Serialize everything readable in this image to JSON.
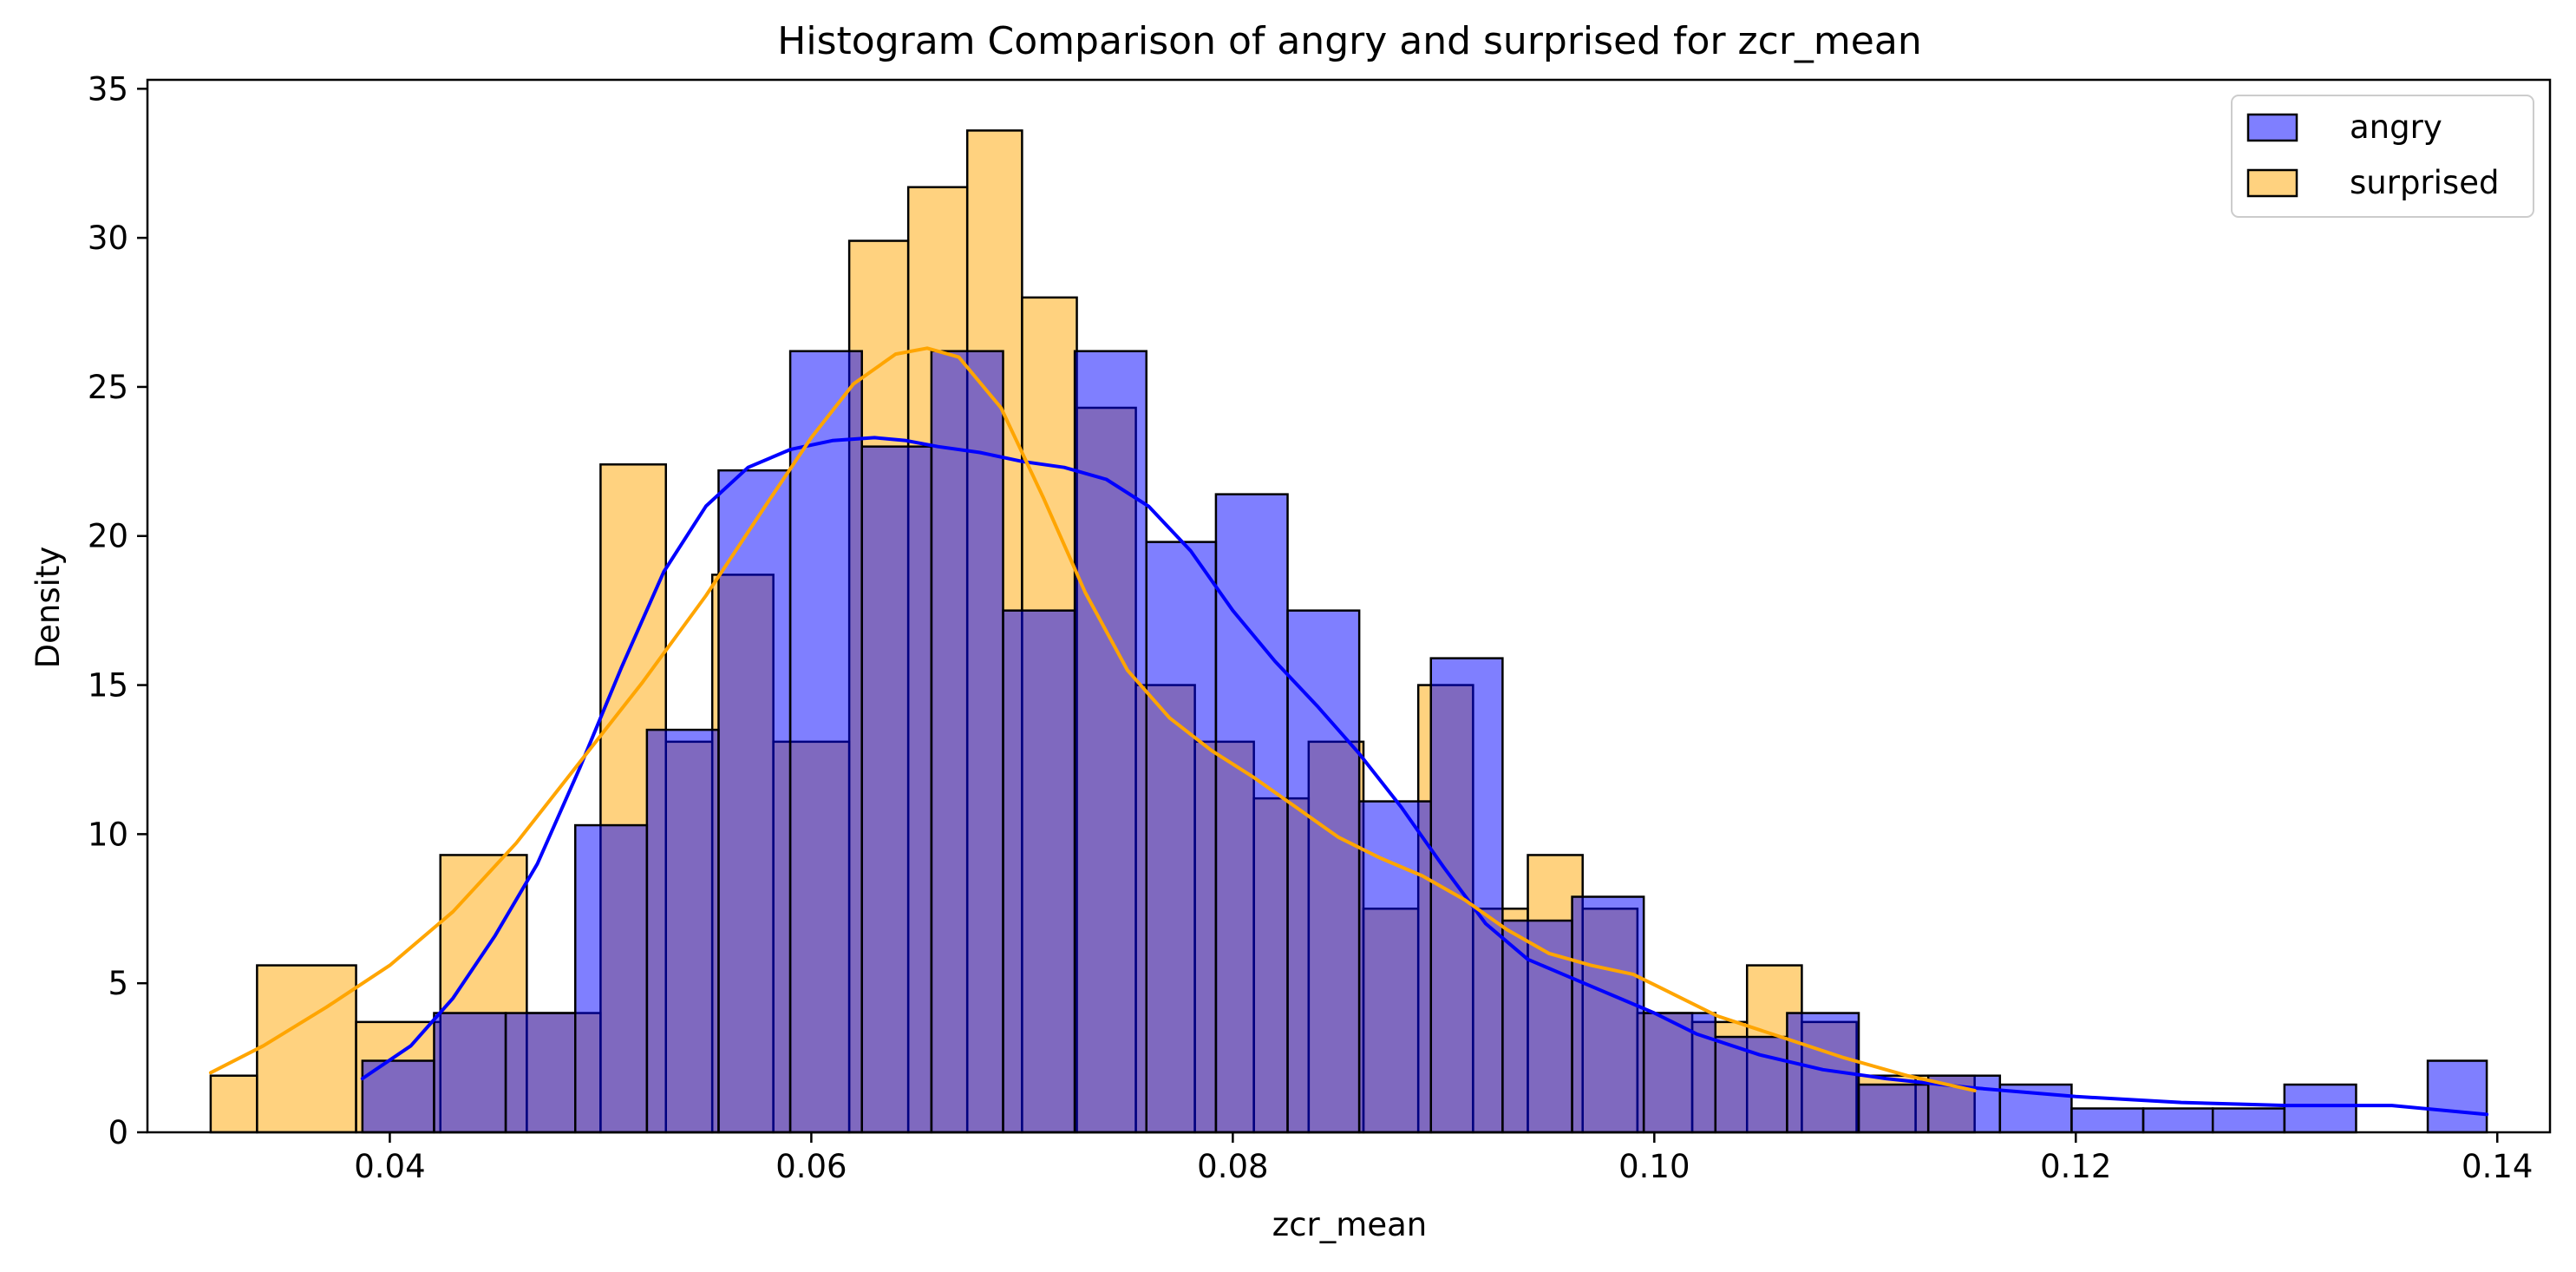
{
  "chart_data": {
    "type": "histogram",
    "title": "Histogram Comparison of angry and surprised for zcr_mean",
    "xlabel": "zcr_mean",
    "ylabel": "Density",
    "xlim": [
      0.0285,
      0.1425
    ],
    "ylim": [
      0,
      35.3
    ],
    "xticks": [
      0.04,
      0.06,
      0.08,
      0.1,
      0.12,
      0.14
    ],
    "xtick_labels": [
      "0.04",
      "0.06",
      "0.08",
      "0.10",
      "0.12",
      "0.14"
    ],
    "yticks": [
      0,
      5,
      10,
      15,
      20,
      25,
      30,
      35
    ],
    "ytick_labels": [
      "0",
      "5",
      "10",
      "15",
      "20",
      "25",
      "30",
      "35"
    ],
    "legend_position": "top-right",
    "grid": false,
    "series": [
      {
        "name": "angry",
        "color": "#0000ff",
        "fill_opacity": 0.5,
        "bins": [
          {
            "x0": 0.0387,
            "x1": 0.0421,
            "value": 2.4
          },
          {
            "x0": 0.0421,
            "x1": 0.0455,
            "value": 4.0
          },
          {
            "x0": 0.0455,
            "x1": 0.0488,
            "value": 4.0
          },
          {
            "x0": 0.0488,
            "x1": 0.0522,
            "value": 10.3
          },
          {
            "x0": 0.0522,
            "x1": 0.0556,
            "value": 13.5
          },
          {
            "x0": 0.0556,
            "x1": 0.059,
            "value": 22.2
          },
          {
            "x0": 0.059,
            "x1": 0.0624,
            "value": 26.2
          },
          {
            "x0": 0.0624,
            "x1": 0.0657,
            "value": 23.0
          },
          {
            "x0": 0.0657,
            "x1": 0.0691,
            "value": 26.2
          },
          {
            "x0": 0.0691,
            "x1": 0.0725,
            "value": 17.5
          },
          {
            "x0": 0.0725,
            "x1": 0.0759,
            "value": 26.2
          },
          {
            "x0": 0.0759,
            "x1": 0.0792,
            "value": 19.8
          },
          {
            "x0": 0.0792,
            "x1": 0.0826,
            "value": 21.4
          },
          {
            "x0": 0.0826,
            "x1": 0.086,
            "value": 17.5
          },
          {
            "x0": 0.086,
            "x1": 0.0894,
            "value": 11.1
          },
          {
            "x0": 0.0894,
            "x1": 0.0928,
            "value": 15.9
          },
          {
            "x0": 0.0928,
            "x1": 0.0961,
            "value": 7.1
          },
          {
            "x0": 0.0961,
            "x1": 0.0995,
            "value": 7.9
          },
          {
            "x0": 0.0995,
            "x1": 0.1029,
            "value": 4.0
          },
          {
            "x0": 0.1029,
            "x1": 0.1063,
            "value": 3.2
          },
          {
            "x0": 0.1063,
            "x1": 0.1097,
            "value": 4.0
          },
          {
            "x0": 0.1097,
            "x1": 0.113,
            "value": 1.6
          },
          {
            "x0": 0.113,
            "x1": 0.1164,
            "value": 1.9
          },
          {
            "x0": 0.1164,
            "x1": 0.1198,
            "value": 1.6
          },
          {
            "x0": 0.1198,
            "x1": 0.1232,
            "value": 0.8
          },
          {
            "x0": 0.1232,
            "x1": 0.1265,
            "value": 0.8
          },
          {
            "x0": 0.1265,
            "x1": 0.1299,
            "value": 0.8
          },
          {
            "x0": 0.1299,
            "x1": 0.1333,
            "value": 1.6
          },
          {
            "x0": 0.1333,
            "x1": 0.1367,
            "value": 0
          },
          {
            "x0": 0.1367,
            "x1": 0.1395,
            "value": 2.4
          }
        ],
        "kde": {
          "x": [
            0.0387,
            0.041,
            0.043,
            0.045,
            0.047,
            0.049,
            0.051,
            0.053,
            0.055,
            0.057,
            0.059,
            0.061,
            0.063,
            0.0645,
            0.066,
            0.068,
            0.07,
            0.072,
            0.074,
            0.076,
            0.078,
            0.08,
            0.082,
            0.084,
            0.086,
            0.088,
            0.09,
            0.092,
            0.094,
            0.096,
            0.098,
            0.1,
            0.102,
            0.105,
            0.108,
            0.111,
            0.115,
            0.12,
            0.125,
            0.13,
            0.135,
            0.1395
          ],
          "y": [
            1.8,
            2.9,
            4.5,
            6.6,
            9.0,
            12.2,
            15.6,
            18.8,
            21.0,
            22.3,
            22.9,
            23.2,
            23.3,
            23.2,
            23.0,
            22.8,
            22.5,
            22.3,
            21.9,
            21.0,
            19.5,
            17.5,
            15.8,
            14.3,
            12.7,
            10.9,
            8.9,
            7.0,
            5.8,
            5.2,
            4.6,
            4.0,
            3.3,
            2.6,
            2.1,
            1.8,
            1.5,
            1.2,
            1.0,
            0.9,
            0.9,
            0.6
          ]
        }
      },
      {
        "name": "surprised",
        "color": "#ffa500",
        "fill_opacity": 0.5,
        "bins": [
          {
            "x0": 0.0315,
            "x1": 0.0337,
            "value": 1.9
          },
          {
            "x0": 0.0337,
            "x1": 0.0384,
            "value": 5.6
          },
          {
            "x0": 0.0384,
            "x1": 0.0424,
            "value": 3.7
          },
          {
            "x0": 0.0424,
            "x1": 0.0465,
            "value": 9.3
          },
          {
            "x0": 0.0465,
            "x1": 0.05,
            "value": 4.0
          },
          {
            "x0": 0.05,
            "x1": 0.0531,
            "value": 22.4
          },
          {
            "x0": 0.0531,
            "x1": 0.0553,
            "value": 13.1
          },
          {
            "x0": 0.0553,
            "x1": 0.0582,
            "value": 18.7
          },
          {
            "x0": 0.0582,
            "x1": 0.0618,
            "value": 13.1
          },
          {
            "x0": 0.0618,
            "x1": 0.0646,
            "value": 29.9
          },
          {
            "x0": 0.0646,
            "x1": 0.0674,
            "value": 31.7
          },
          {
            "x0": 0.0674,
            "x1": 0.07,
            "value": 33.6
          },
          {
            "x0": 0.07,
            "x1": 0.0726,
            "value": 28.0
          },
          {
            "x0": 0.0726,
            "x1": 0.0754,
            "value": 24.3
          },
          {
            "x0": 0.0754,
            "x1": 0.0782,
            "value": 15.0
          },
          {
            "x0": 0.0782,
            "x1": 0.081,
            "value": 13.1
          },
          {
            "x0": 0.081,
            "x1": 0.0836,
            "value": 11.2
          },
          {
            "x0": 0.0836,
            "x1": 0.0862,
            "value": 13.1
          },
          {
            "x0": 0.0862,
            "x1": 0.0888,
            "value": 7.5
          },
          {
            "x0": 0.0888,
            "x1": 0.0914,
            "value": 15.0
          },
          {
            "x0": 0.0914,
            "x1": 0.094,
            "value": 7.5
          },
          {
            "x0": 0.094,
            "x1": 0.0966,
            "value": 9.3
          },
          {
            "x0": 0.0966,
            "x1": 0.0992,
            "value": 7.5
          },
          {
            "x0": 0.0992,
            "x1": 0.1018,
            "value": 4.0
          },
          {
            "x0": 0.1018,
            "x1": 0.1044,
            "value": 3.7
          },
          {
            "x0": 0.1044,
            "x1": 0.107,
            "value": 5.6
          },
          {
            "x0": 0.107,
            "x1": 0.1096,
            "value": 3.7
          },
          {
            "x0": 0.1096,
            "x1": 0.1124,
            "value": 1.9
          },
          {
            "x0": 0.1124,
            "x1": 0.1152,
            "value": 1.9
          }
        ],
        "kde": {
          "x": [
            0.0315,
            0.034,
            0.037,
            0.04,
            0.043,
            0.046,
            0.049,
            0.052,
            0.055,
            0.058,
            0.06,
            0.062,
            0.064,
            0.0655,
            0.067,
            0.069,
            0.071,
            0.073,
            0.075,
            0.077,
            0.079,
            0.081,
            0.083,
            0.085,
            0.087,
            0.089,
            0.091,
            0.093,
            0.095,
            0.097,
            0.099,
            0.101,
            0.103,
            0.106,
            0.109,
            0.112,
            0.1152
          ],
          "y": [
            2.0,
            2.9,
            4.2,
            5.6,
            7.4,
            9.7,
            12.4,
            15.1,
            18.0,
            21.2,
            23.3,
            25.1,
            26.1,
            26.3,
            26.0,
            24.3,
            21.3,
            18.1,
            15.5,
            13.9,
            12.8,
            11.9,
            10.9,
            9.9,
            9.2,
            8.6,
            7.8,
            6.8,
            6.0,
            5.6,
            5.3,
            4.6,
            3.9,
            3.2,
            2.5,
            1.9,
            1.4
          ]
        }
      }
    ]
  }
}
